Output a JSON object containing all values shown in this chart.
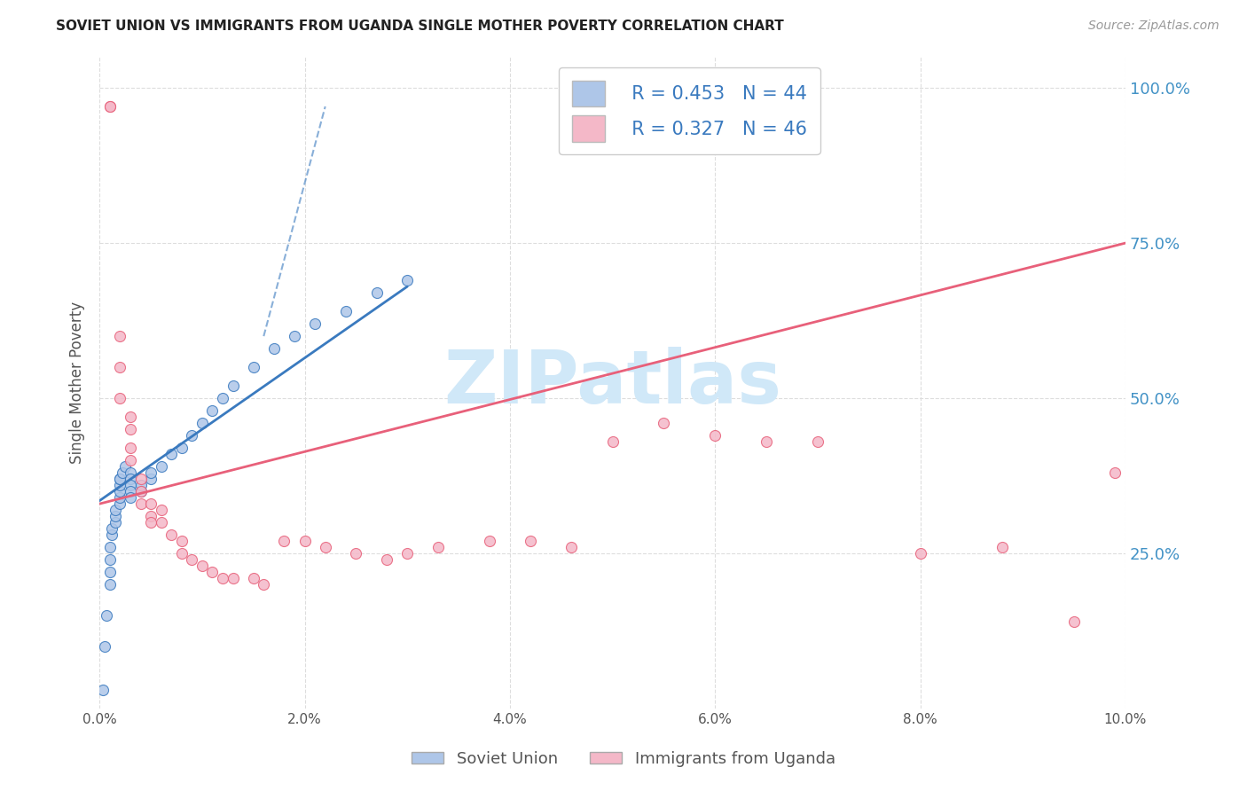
{
  "title": "SOVIET UNION VS IMMIGRANTS FROM UGANDA SINGLE MOTHER POVERTY CORRELATION CHART",
  "source": "Source: ZipAtlas.com",
  "ylabel": "Single Mother Poverty",
  "legend_label1": "Soviet Union",
  "legend_label2": "Immigrants from Uganda",
  "r1": 0.453,
  "n1": 44,
  "r2": 0.327,
  "n2": 46,
  "ytick_values": [
    0.25,
    0.5,
    0.75,
    1.0
  ],
  "ytick_labels": [
    "25.0%",
    "50.0%",
    "75.0%",
    "100.0%"
  ],
  "xtick_values": [
    0.0,
    0.02,
    0.04,
    0.06,
    0.08,
    0.1
  ],
  "xtick_labels": [
    "0.0%",
    "2.0%",
    "4.0%",
    "6.0%",
    "8.0%",
    "10.0%"
  ],
  "color1": "#aec6e8",
  "color2": "#f4b8c8",
  "color1_line": "#3a7abf",
  "color2_line": "#e8607a",
  "watermark_color": "#d0e8f8",
  "background": "#ffffff",
  "grid_color": "#dddddd",
  "title_color": "#222222",
  "source_color": "#999999",
  "right_tick_color": "#4292c6",
  "legend_text_color": "#3a7abf",
  "xmax": 0.1,
  "ymax": 1.05,
  "soviet_x": [
    0.0003,
    0.0005,
    0.0007,
    0.001,
    0.001,
    0.001,
    0.001,
    0.0012,
    0.0012,
    0.0015,
    0.0015,
    0.0015,
    0.002,
    0.002,
    0.002,
    0.002,
    0.002,
    0.002,
    0.0022,
    0.0025,
    0.003,
    0.003,
    0.003,
    0.003,
    0.003,
    0.004,
    0.004,
    0.005,
    0.005,
    0.006,
    0.007,
    0.008,
    0.009,
    0.01,
    0.011,
    0.012,
    0.013,
    0.015,
    0.017,
    0.019,
    0.021,
    0.024,
    0.027,
    0.03
  ],
  "soviet_y": [
    0.03,
    0.1,
    0.15,
    0.2,
    0.22,
    0.24,
    0.26,
    0.28,
    0.29,
    0.3,
    0.31,
    0.32,
    0.33,
    0.34,
    0.35,
    0.36,
    0.37,
    0.37,
    0.38,
    0.39,
    0.38,
    0.37,
    0.36,
    0.35,
    0.34,
    0.35,
    0.36,
    0.37,
    0.38,
    0.39,
    0.41,
    0.42,
    0.44,
    0.46,
    0.48,
    0.5,
    0.52,
    0.55,
    0.58,
    0.6,
    0.62,
    0.64,
    0.67,
    0.69
  ],
  "uganda_x": [
    0.001,
    0.001,
    0.002,
    0.002,
    0.002,
    0.003,
    0.003,
    0.003,
    0.003,
    0.004,
    0.004,
    0.004,
    0.005,
    0.005,
    0.005,
    0.006,
    0.006,
    0.007,
    0.008,
    0.008,
    0.009,
    0.01,
    0.011,
    0.012,
    0.013,
    0.015,
    0.016,
    0.018,
    0.02,
    0.022,
    0.025,
    0.028,
    0.03,
    0.033,
    0.038,
    0.042,
    0.046,
    0.05,
    0.055,
    0.06,
    0.065,
    0.07,
    0.08,
    0.088,
    0.095,
    0.099
  ],
  "uganda_y": [
    0.97,
    0.97,
    0.6,
    0.55,
    0.5,
    0.47,
    0.45,
    0.42,
    0.4,
    0.37,
    0.35,
    0.33,
    0.33,
    0.31,
    0.3,
    0.32,
    0.3,
    0.28,
    0.27,
    0.25,
    0.24,
    0.23,
    0.22,
    0.21,
    0.21,
    0.21,
    0.2,
    0.27,
    0.27,
    0.26,
    0.25,
    0.24,
    0.25,
    0.26,
    0.27,
    0.27,
    0.26,
    0.43,
    0.46,
    0.44,
    0.43,
    0.43,
    0.25,
    0.26,
    0.14,
    0.38
  ],
  "blue_line_x": [
    0.0,
    0.03
  ],
  "blue_line_y": [
    0.335,
    0.68
  ],
  "pink_line_x": [
    0.0,
    0.1
  ],
  "pink_line_y": [
    0.33,
    0.75
  ]
}
